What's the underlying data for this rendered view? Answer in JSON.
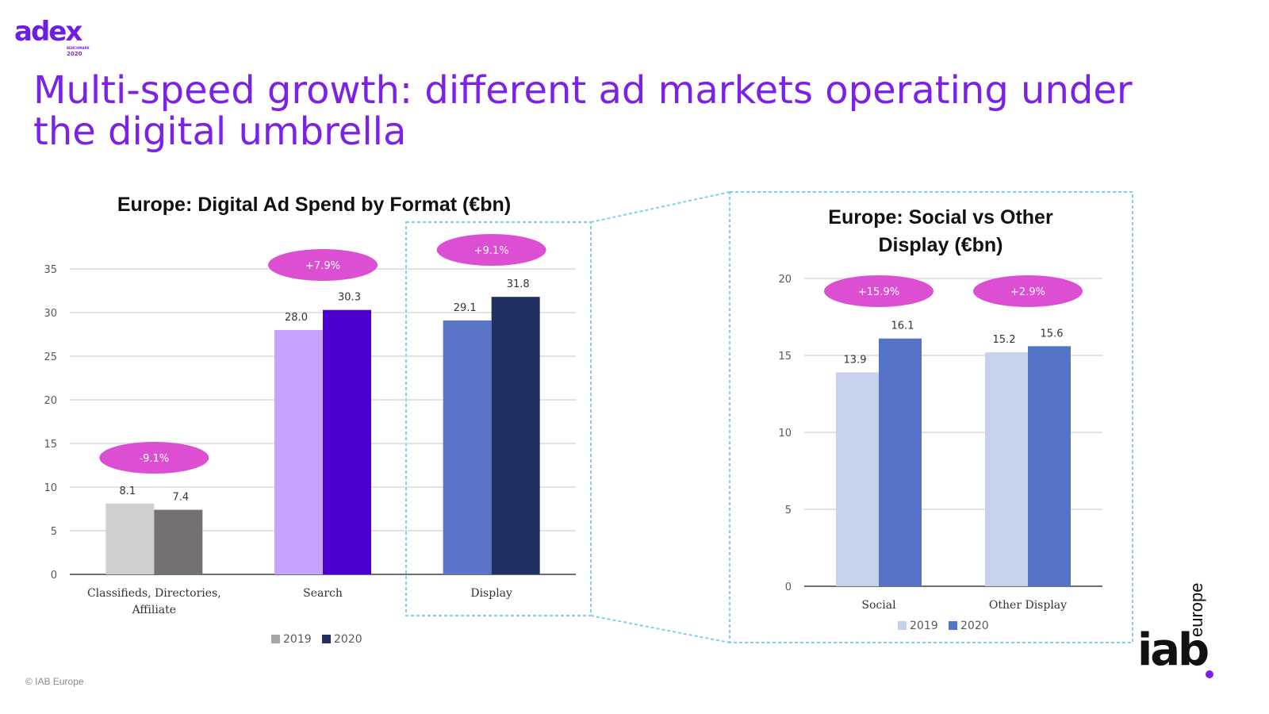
{
  "logo": {
    "word": "adex",
    "sub_small": "BENCHMARK",
    "sub_year": "2020"
  },
  "page_title": "Multi-speed growth: different ad markets operating under the digital umbrella",
  "copyright": "© IAB Europe",
  "iab_logo": {
    "main": "iab",
    "sub": "europe"
  },
  "colors": {
    "title": "#7b22e6",
    "pill": "#dc4ed2",
    "dash_box": "#7fd0ea",
    "gray_2019": "#d0cece",
    "gray_2020": "#767171",
    "purple_2019": "#c5a3ff",
    "purple_2020": "#4b00d0",
    "blue_2019": "#5b76c8",
    "blue_2020": "#203060",
    "light_2019": "#c6d1ec",
    "light_2020": "#5574c8"
  },
  "chart_data": [
    {
      "type": "bar",
      "title": "Europe: Digital Ad Spend by Format (€bn)",
      "categories": [
        "Classifieds, Directories, Affiliate",
        "Search",
        "Display"
      ],
      "category_lines": [
        [
          "Classifieds, Directories,",
          "Affiliate"
        ],
        [
          "Search"
        ],
        [
          "Display"
        ]
      ],
      "series": [
        {
          "name": "2019",
          "values": [
            8.1,
            28.0,
            29.1
          ]
        },
        {
          "name": "2020",
          "values": [
            7.4,
            30.3,
            31.8
          ]
        }
      ],
      "value_labels": [
        [
          "8.1",
          "28.0",
          "29.1"
        ],
        [
          "7.4",
          "30.3",
          "31.8"
        ]
      ],
      "growth_labels": [
        "-9.1%",
        "+7.9%",
        "+9.1%"
      ],
      "yticks": [
        "0",
        "5",
        "10",
        "15",
        "20",
        "25",
        "30",
        "35"
      ],
      "ylim": [
        0,
        35
      ],
      "legend": [
        "2019",
        "2020"
      ],
      "legend_position": "bottom",
      "grid": true,
      "xlabel": "",
      "ylabel": ""
    },
    {
      "type": "bar",
      "title": "Europe: Social vs Other Display (€bn)",
      "title_lines": [
        "Europe: Social vs Other",
        "Display (€bn)"
      ],
      "categories": [
        "Social",
        "Other Display"
      ],
      "series": [
        {
          "name": "2019",
          "values": [
            13.9,
            15.2
          ]
        },
        {
          "name": "2020",
          "values": [
            16.1,
            15.6
          ]
        }
      ],
      "value_labels": [
        [
          "13.9",
          "15.2"
        ],
        [
          "16.1",
          "15.6"
        ]
      ],
      "growth_labels": [
        "+15.9%",
        "+2.9%"
      ],
      "yticks": [
        "0",
        "5",
        "10",
        "15",
        "20"
      ],
      "ylim": [
        0,
        20
      ],
      "legend": [
        "2019",
        "2020"
      ],
      "legend_position": "bottom",
      "grid": true,
      "xlabel": "",
      "ylabel": ""
    }
  ]
}
